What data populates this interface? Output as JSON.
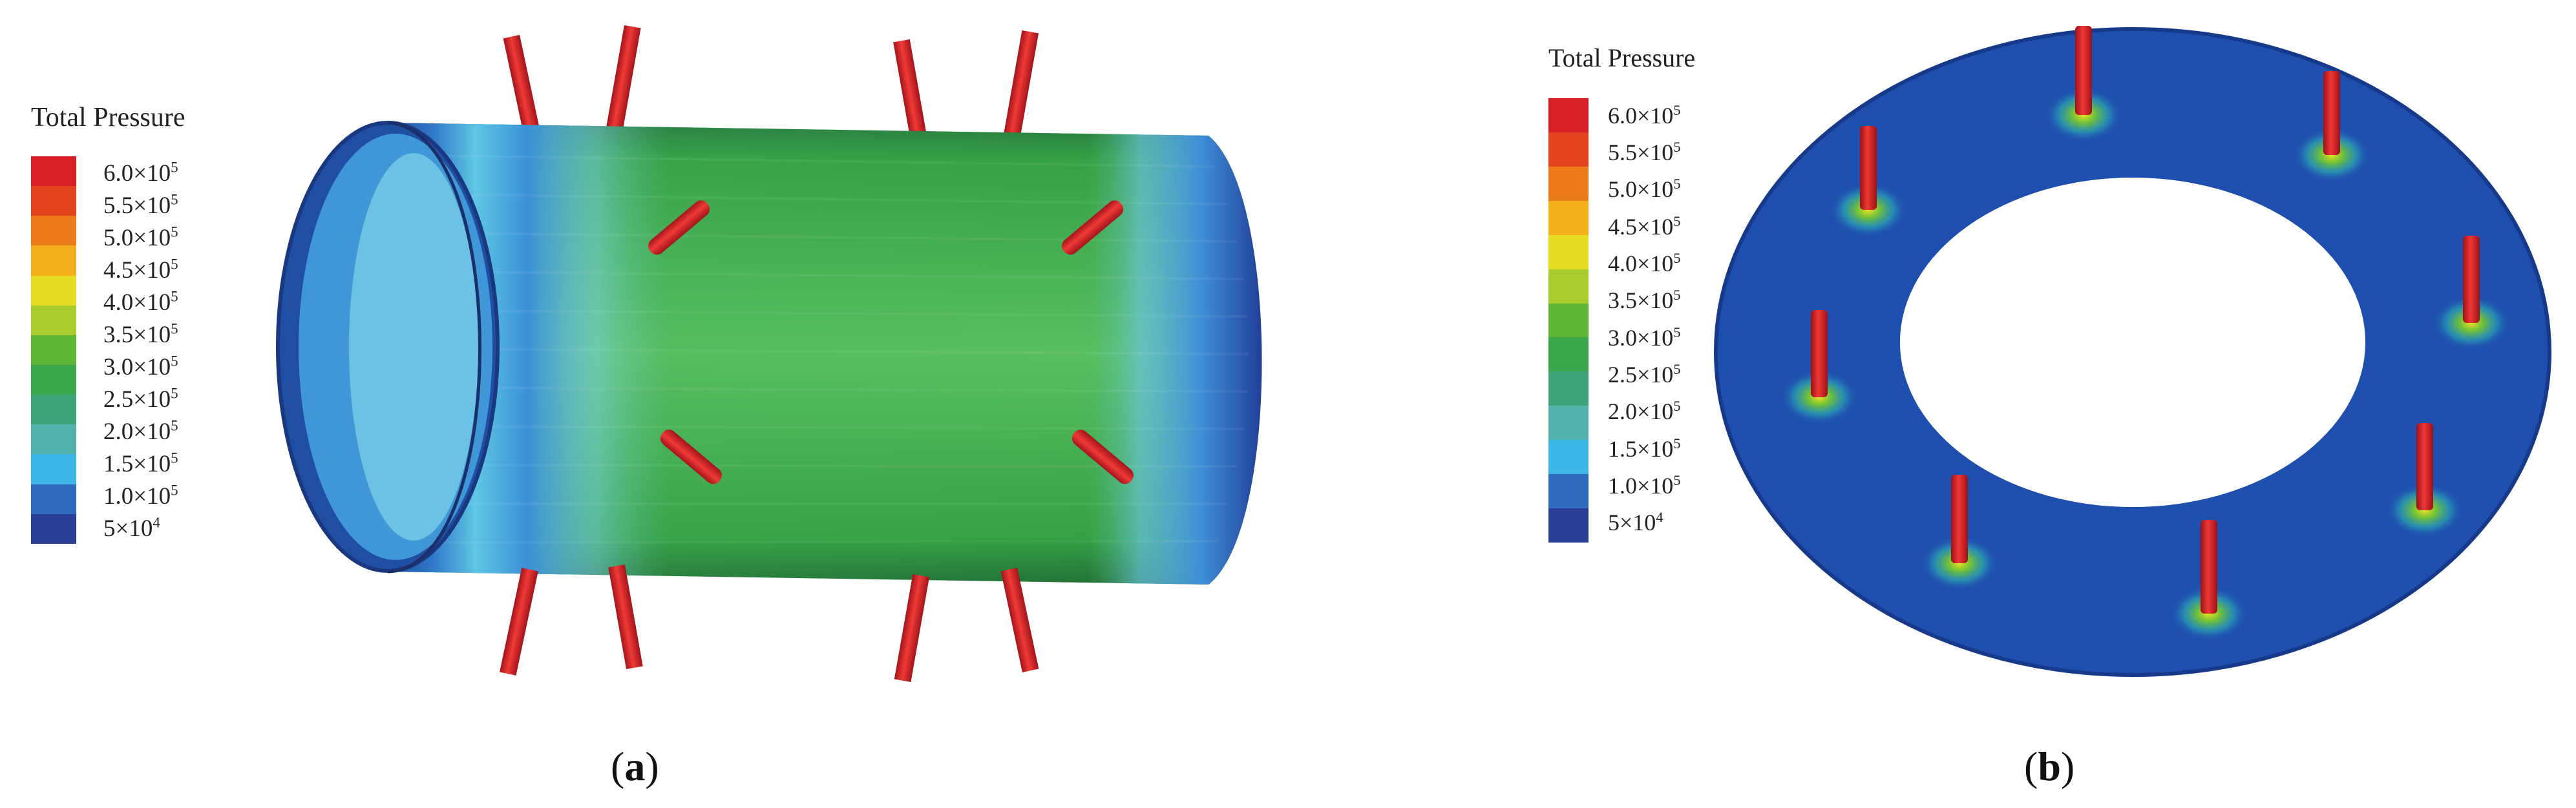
{
  "panel_a": {
    "legend": {
      "title": "Total Pressure",
      "ticks": [
        "6.0×10^5",
        "5.5×10^5",
        "5.0×10^5",
        "4.5×10^5",
        "4.0×10^5",
        "3.5×10^5",
        "3.0×10^5",
        "2.5×10^5",
        "2.0×10^5",
        "1.5×10^5",
        "1.0×10^5",
        "5×10^4"
      ]
    },
    "caption": {
      "open": "(",
      "letter": "a",
      "close": ")"
    }
  },
  "panel_b": {
    "legend": {
      "title": "Total Pressure",
      "ticks": [
        "6.0×10^5",
        "5.5×10^5",
        "5.0×10^5",
        "4.5×10^5",
        "4.0×10^5",
        "3.5×10^5",
        "3.0×10^5",
        "2.5×10^5",
        "2.0×10^5",
        "1.5×10^5",
        "1.0×10^5",
        "5×10^4"
      ]
    },
    "caption": {
      "open": "(",
      "letter": "b",
      "close": ")"
    }
  },
  "colormap": [
    "#d71f27",
    "#e3461f",
    "#ec7b1a",
    "#f4b11b",
    "#e6dc24",
    "#a9cc2e",
    "#5fb636",
    "#3aa84a",
    "#3fa47a",
    "#52b2ac",
    "#3fb7e6",
    "#2e6bbd",
    "#2a3f95"
  ]
}
